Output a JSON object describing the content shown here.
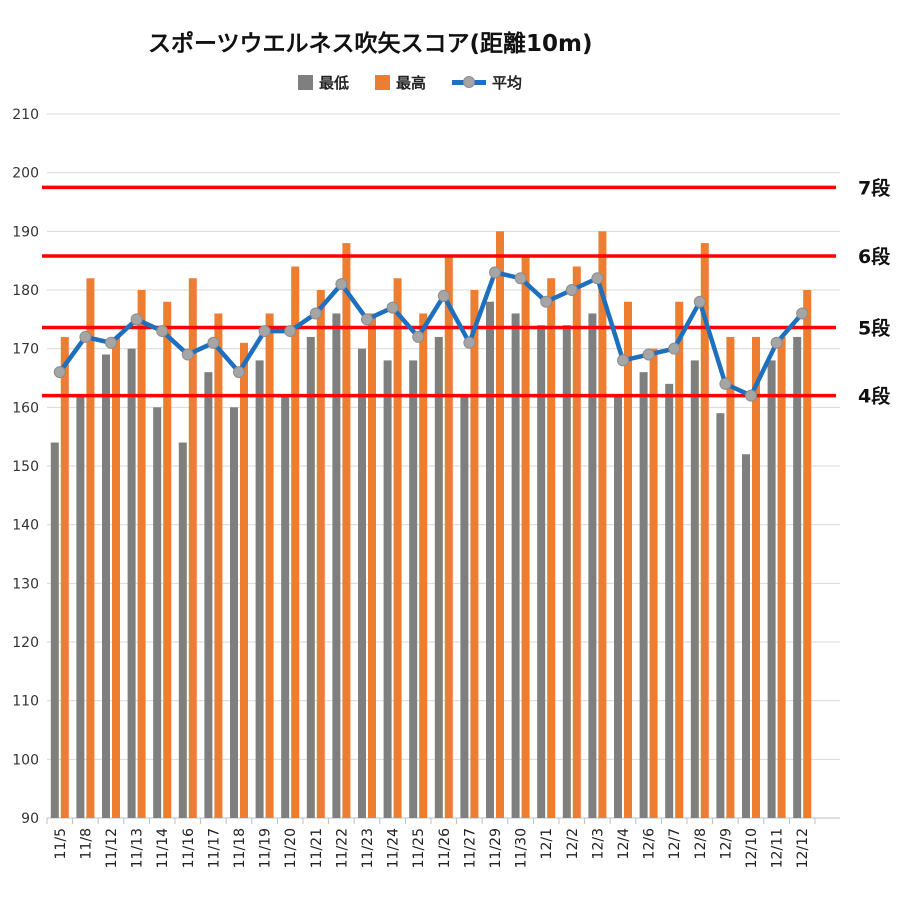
{
  "chart_data": {
    "type": "bar",
    "title": "スポーツウエルネス吹矢スコア(距離10m)",
    "xlabel": "",
    "ylabel": "",
    "ylim": [
      90,
      210
    ],
    "yticks": [
      90,
      100,
      110,
      120,
      130,
      140,
      150,
      160,
      170,
      180,
      190,
      200,
      210
    ],
    "grid": true,
    "legend_position": "top",
    "categories": [
      "11/5",
      "11/8",
      "11/12",
      "11/13",
      "11/14",
      "11/16",
      "11/17",
      "11/18",
      "11/19",
      "11/20",
      "11/21",
      "11/22",
      "11/23",
      "11/24",
      "11/25",
      "11/26",
      "11/27",
      "11/29",
      "11/30",
      "12/1",
      "12/2",
      "12/3",
      "12/4",
      "12/6",
      "12/7",
      "12/8",
      "12/9",
      "12/10",
      "12/11",
      "12/12"
    ],
    "series": [
      {
        "name": "最低",
        "kind": "bar",
        "color": "#7f7f7f",
        "values": [
          154,
          162,
          169,
          170,
          160,
          154,
          166,
          160,
          168,
          162,
          172,
          176,
          170,
          168,
          168,
          172,
          162,
          178,
          176,
          174,
          174,
          176,
          162,
          166,
          164,
          168,
          159,
          152,
          168,
          172
        ]
      },
      {
        "name": "最高",
        "kind": "bar",
        "color": "#ed7d31",
        "values": [
          172,
          182,
          172,
          180,
          178,
          182,
          176,
          171,
          176,
          184,
          180,
          188,
          176,
          182,
          176,
          186,
          180,
          190,
          186,
          182,
          184,
          190,
          178,
          170,
          178,
          188,
          172,
          172,
          172,
          180
        ]
      },
      {
        "name": "平均",
        "kind": "line",
        "color": "#1f6fbf",
        "marker_color": "#a5a5a5",
        "values": [
          166,
          172,
          171,
          175,
          173,
          169,
          171,
          166,
          173,
          173,
          176,
          181,
          175,
          177,
          172,
          179,
          171,
          183,
          182,
          178,
          180,
          182,
          168,
          169,
          170,
          178,
          164,
          162,
          171,
          176
        ]
      }
    ],
    "reference_lines": [
      {
        "label": "7段",
        "value": 197.5,
        "color": "#ff0000"
      },
      {
        "label": "6段",
        "value": 185.8,
        "color": "#ff0000"
      },
      {
        "label": "5段",
        "value": 173.6,
        "color": "#ff0000"
      },
      {
        "label": "4段",
        "value": 162.0,
        "color": "#ff0000"
      }
    ]
  }
}
